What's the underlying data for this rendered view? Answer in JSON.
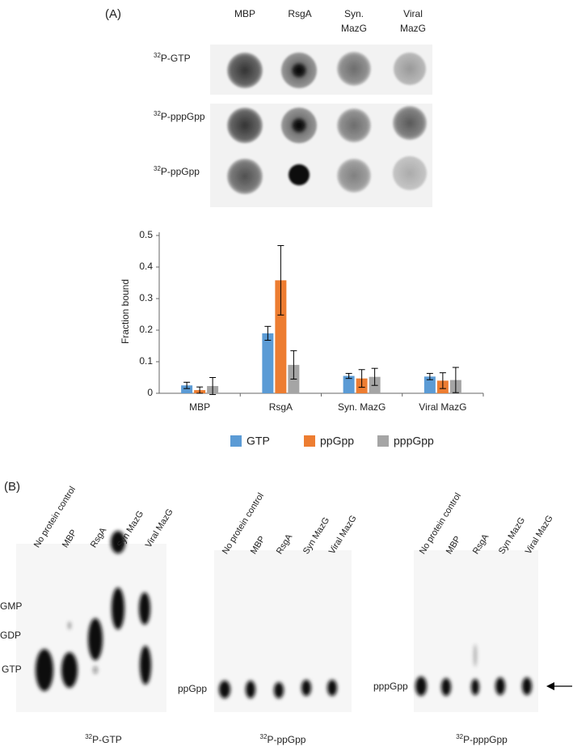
{
  "chart_data": {
    "type": "bar",
    "ylabel": "Fraction bound",
    "categories": [
      "MBP",
      "RsgA",
      "Syn. MazG",
      "Viral MazG"
    ],
    "series": [
      {
        "name": "GTP",
        "color": "#5b9bd5",
        "values": [
          0.025,
          0.19,
          0.055,
          0.053
        ],
        "errors": [
          0.01,
          0.022,
          0.008,
          0.01
        ]
      },
      {
        "name": "ppGpp",
        "color": "#ed7d31",
        "values": [
          0.01,
          0.358,
          0.047,
          0.04
        ],
        "errors": [
          0.01,
          0.11,
          0.028,
          0.025
        ]
      },
      {
        "name": "pppGpp",
        "color": "#a5a5a5",
        "values": [
          0.023,
          0.09,
          0.052,
          0.042
        ],
        "errors": [
          0.027,
          0.045,
          0.027,
          0.04
        ]
      }
    ],
    "ylim": [
      0,
      0.5
    ],
    "yticks": [
      0,
      0.1,
      0.2,
      0.3,
      0.4,
      0.5
    ]
  },
  "panel_a": {
    "label": "(A)",
    "columns": [
      "MBP",
      "RsgA",
      "Syn.",
      "MazG",
      "Viral",
      "MazG"
    ],
    "rows": [
      {
        "sup": "32",
        "text": "P-GTP"
      },
      {
        "sup": "32",
        "text": "P-pppGpp"
      },
      {
        "sup": "32",
        "text": "P-ppGpp"
      }
    ]
  },
  "panel_b": {
    "label": "(B)",
    "lanes": [
      "No protein control",
      "MBP",
      "RsgA",
      "Syn MazG",
      "Viral MazG"
    ],
    "plates": [
      {
        "spots": [
          "GMP",
          "GDP",
          "GTP"
        ],
        "caption": {
          "sup": "32",
          "text": "P-GTP"
        }
      },
      {
        "spots": [
          "ppGpp"
        ],
        "caption": {
          "sup": "32",
          "text": "P-ppGpp"
        }
      },
      {
        "spots": [
          "pppGpp"
        ],
        "caption": {
          "sup": "32",
          "text": "P-pppGpp"
        }
      }
    ]
  }
}
